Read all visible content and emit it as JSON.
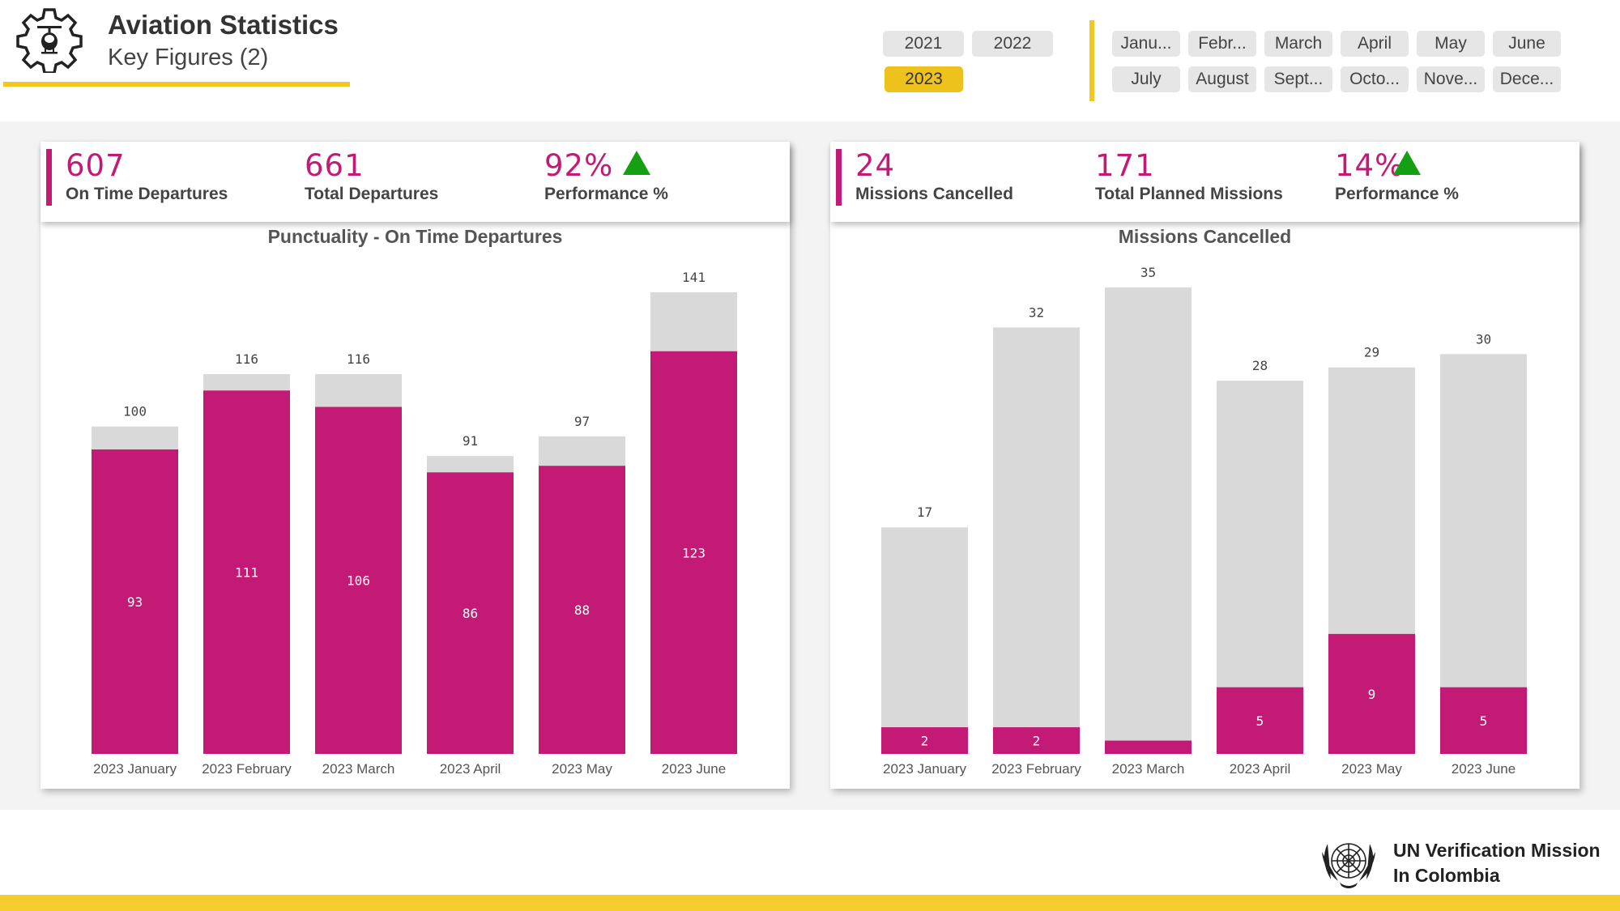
{
  "header": {
    "title": "Aviation Statistics",
    "subtitle": "Key Figures (2)"
  },
  "year_slicer": {
    "items": [
      {
        "label": "2021",
        "selected": false
      },
      {
        "label": "2022",
        "selected": false
      },
      {
        "label": "2023",
        "selected": true
      }
    ]
  },
  "month_slicer": {
    "items": [
      "Janu...",
      "Febr...",
      "March",
      "April",
      "May",
      "June",
      "July",
      "August",
      "Sept...",
      "Octo...",
      "Nove...",
      "Dece..."
    ]
  },
  "left_kpis": [
    {
      "value": "607",
      "label": "On Time Departures"
    },
    {
      "value": "661",
      "label": "Total Departures"
    },
    {
      "value": "92%",
      "label": "Performance %"
    }
  ],
  "right_kpis": [
    {
      "value": "24",
      "label": "Missions Cancelled"
    },
    {
      "value": "171",
      "label": "Total Planned Missions"
    },
    {
      "value": "14%",
      "label": "Performance %"
    }
  ],
  "colors": {
    "accent": "#c21a75",
    "gray_bar": "#d9d9d9",
    "yellow": "#f2c623",
    "up_arrow": "#15a014"
  },
  "chart_data": [
    {
      "type": "bar",
      "stacked": "overlay",
      "title": "Punctuality - On Time Departures",
      "categories": [
        "2023 January",
        "2023 February",
        "2023 March",
        "2023 April",
        "2023 May",
        "2023 June"
      ],
      "series": [
        {
          "name": "Total Departures",
          "values": [
            100,
            116,
            116,
            91,
            97,
            141
          ]
        },
        {
          "name": "On Time Departures",
          "values": [
            93,
            111,
            106,
            86,
            88,
            123
          ]
        }
      ],
      "ylim": [
        0,
        141
      ],
      "xlabel": "",
      "ylabel": ""
    },
    {
      "type": "bar",
      "stacked": "overlay",
      "title": "Missions Cancelled",
      "categories": [
        "2023 January",
        "2023 February",
        "2023 March",
        "2023 April",
        "2023 May",
        "2023 June"
      ],
      "series": [
        {
          "name": "Total Planned Missions",
          "values": [
            17,
            32,
            35,
            28,
            29,
            30
          ]
        },
        {
          "name": "Missions Cancelled",
          "values": [
            2,
            2,
            1,
            5,
            9,
            5
          ]
        }
      ],
      "inner_labels_shown": [
        true,
        true,
        false,
        true,
        true,
        true
      ],
      "ylim": [
        0,
        35
      ],
      "xlabel": "",
      "ylabel": ""
    }
  ],
  "footer": {
    "org_line1": "UN Verification Mission",
    "org_line2": "In Colombia"
  }
}
